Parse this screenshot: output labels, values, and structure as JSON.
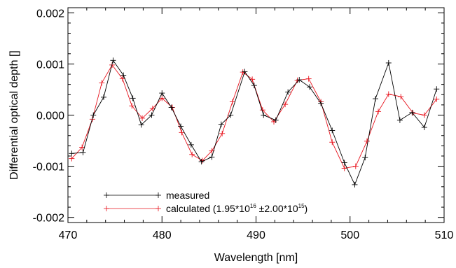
{
  "chart_data": {
    "type": "line",
    "xlabel": "Wavelength [nm]",
    "ylabel": "Differential optical depth []",
    "xlim": [
      470,
      510
    ],
    "ylim": [
      -0.0021,
      0.0021
    ],
    "x_ticks": [
      470,
      480,
      490,
      500,
      510
    ],
    "x_tick_labels": [
      "470",
      "480",
      "490",
      "500",
      "510"
    ],
    "y_ticks": [
      -0.002,
      -0.001,
      0.0,
      0.001,
      0.002
    ],
    "y_tick_labels": [
      "-0.002",
      "-0.001",
      "0.000",
      "0.001",
      "0.002"
    ],
    "x_minor_step": 2,
    "y_minor_step": 0.0002,
    "grid": false,
    "legend_position": "bottom-left",
    "series": [
      {
        "name": "measured",
        "color": "#000000",
        "marker": "plus",
        "x": [
          470.4,
          471.6,
          472.7,
          473.8,
          474.8,
          475.9,
          476.9,
          477.8,
          478.9,
          480.0,
          481.0,
          482.0,
          483.1,
          484.2,
          485.3,
          486.3,
          487.3,
          488.8,
          489.8,
          490.8,
          492.1,
          493.4,
          494.6,
          495.7,
          496.9,
          498.1,
          499.4,
          500.5,
          501.6,
          502.7,
          504.1,
          505.3,
          506.6,
          507.9,
          509.2
        ],
        "y": [
          -0.00075,
          -0.00073,
          0.0,
          0.00035,
          0.00107,
          0.00078,
          0.00033,
          -0.00019,
          0.0,
          0.00043,
          0.00015,
          -0.00022,
          -0.00058,
          -0.00091,
          -0.00082,
          -0.00018,
          0.0,
          0.00085,
          0.00058,
          0.0,
          -0.0001,
          0.00045,
          0.00069,
          0.00055,
          0.00023,
          -0.0003,
          -0.00093,
          -0.00136,
          -0.00083,
          0.00032,
          0.00102,
          -0.0001,
          5e-05,
          -0.00024,
          0.00051
        ]
      },
      {
        "name": "calculated",
        "color": "#e8141e",
        "marker": "plus",
        "x": [
          470.4,
          471.5,
          472.6,
          473.6,
          474.7,
          475.8,
          476.8,
          477.9,
          479.0,
          480.0,
          481.1,
          482.1,
          483.2,
          484.3,
          485.3,
          486.4,
          487.5,
          488.6,
          489.6,
          490.7,
          491.9,
          493.1,
          494.4,
          495.6,
          496.9,
          498.1,
          499.4,
          500.6,
          501.8,
          503.0,
          504.1,
          505.4,
          506.7,
          507.9,
          509.2
        ],
        "y": [
          -0.00085,
          -0.00063,
          -8e-05,
          0.00063,
          0.00098,
          0.00071,
          0.00018,
          -6e-05,
          0.00013,
          0.00033,
          0.00015,
          -0.00034,
          -0.00077,
          -0.00089,
          -0.0007,
          -0.00036,
          0.00026,
          0.00084,
          0.0007,
          0.0001,
          -0.00013,
          0.00021,
          0.00068,
          0.00071,
          0.00026,
          -0.00053,
          -0.00104,
          -0.001,
          -0.00051,
          7e-05,
          0.00041,
          0.00036,
          4e-05,
          0.0,
          0.00031
        ]
      }
    ],
    "legend": {
      "entries": [
        {
          "prefix": "measured",
          "mantissa1": "",
          "exp1": "",
          "mid": "",
          "exp2": "",
          "suffix": ""
        },
        {
          "prefix": "calculated (1.95*10",
          "exp1": "16",
          "mid": " ±2.00*10",
          "exp2": "15",
          "suffix": ")"
        }
      ]
    }
  }
}
